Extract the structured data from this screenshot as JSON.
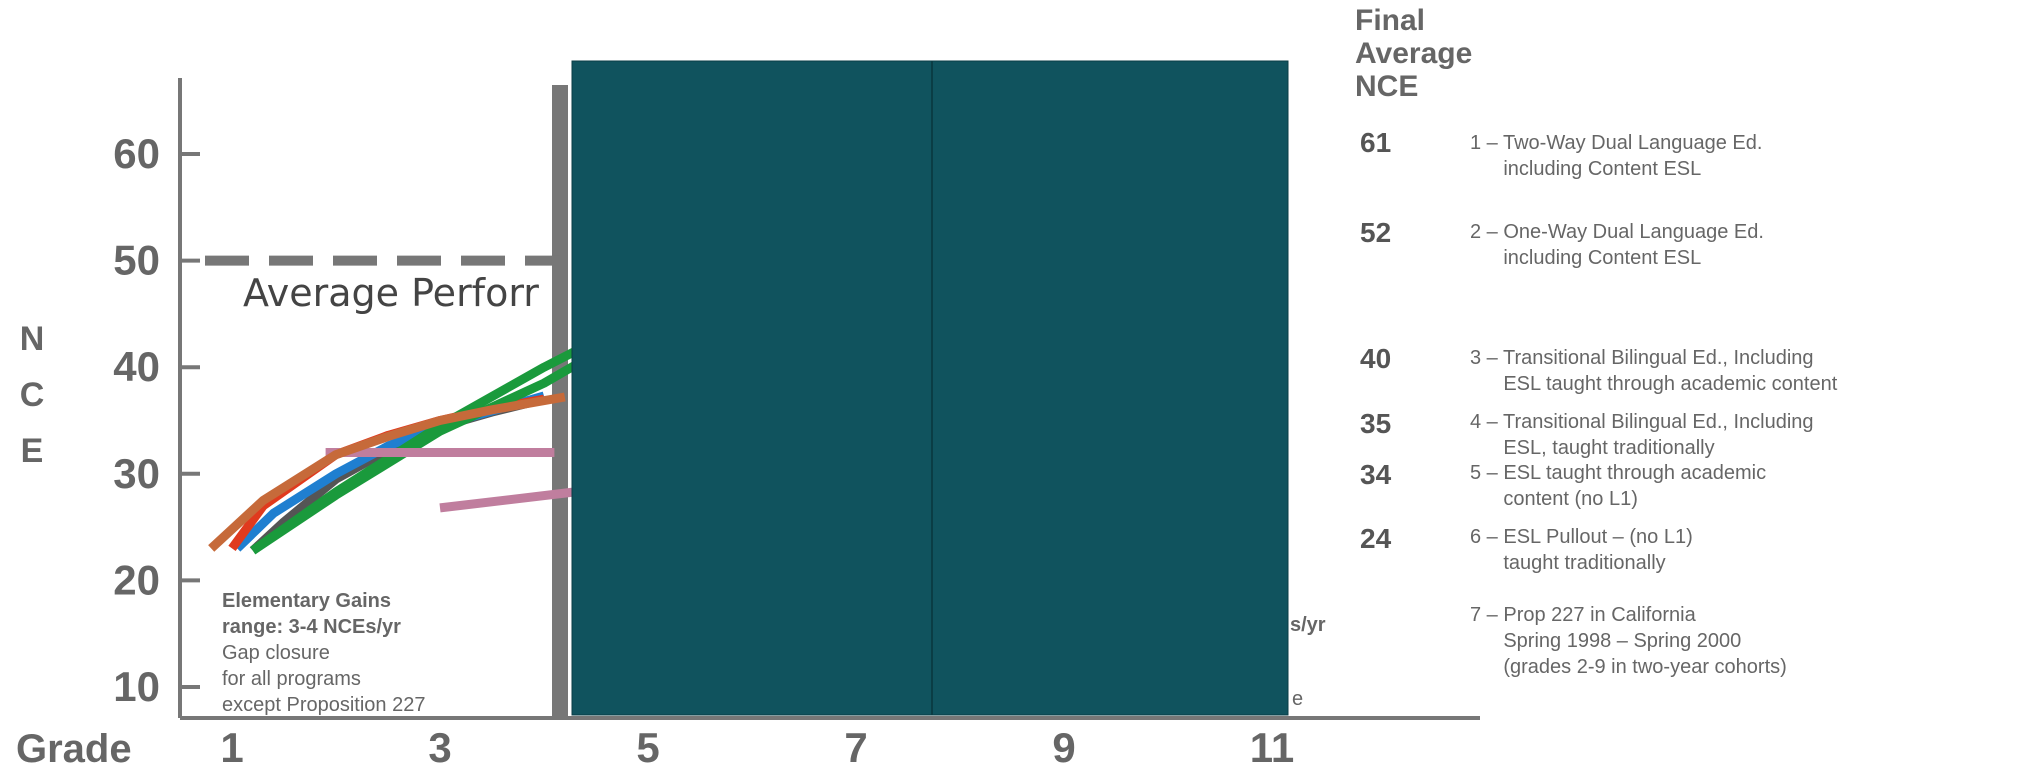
{
  "chart_data": {
    "type": "line",
    "ylabel": "N C E",
    "xlabel": "Grade",
    "x_ticks": [
      "1",
      "3",
      "5",
      "7",
      "9",
      "11"
    ],
    "y_ticks": [
      "10",
      "20",
      "30",
      "40",
      "50",
      "60"
    ],
    "ylim": [
      5,
      66
    ],
    "xlim": [
      0.5,
      11.4
    ],
    "reference_line": {
      "y": 50,
      "label": "Average Perforr",
      "style": "dashed"
    },
    "series": [
      {
        "color": "#555555",
        "x": [
          1.2,
          1.5,
          2,
          2.5,
          3,
          3.5,
          4
        ],
        "y": [
          22.8,
          25.5,
          29.5,
          32.2,
          34.4,
          35.8,
          37.0
        ]
      },
      {
        "color": "#1f7fd0",
        "x": [
          1.05,
          1.4,
          2,
          2.5,
          3,
          3.5,
          4
        ],
        "y": [
          23.0,
          26.3,
          30.0,
          32.6,
          34.5,
          35.9,
          37.3
        ]
      },
      {
        "color": "#e03a1e",
        "x": [
          1.0,
          1.3,
          2,
          2.5,
          3,
          3.5,
          4
        ],
        "y": [
          23.0,
          27.0,
          31.8,
          33.6,
          35.0,
          36.1,
          37.0
        ]
      },
      {
        "color": "#1a9a3c",
        "x": [
          1.2,
          2,
          3,
          4,
          4.3
        ],
        "y": [
          22.8,
          28.3,
          34.5,
          40.0,
          41.5
        ]
      },
      {
        "color": "#1a9a3c",
        "x": [
          1.2,
          2,
          3,
          4,
          4.3
        ],
        "y": [
          22.8,
          28.0,
          34.0,
          38.5,
          40.2
        ]
      },
      {
        "color": "#c07e9e",
        "x": [
          1.9,
          4.1
        ],
        "y": [
          32.0,
          32.0
        ]
      },
      {
        "color": "#c07e9e",
        "x": [
          3.0,
          4.3
        ],
        "y": [
          26.8,
          28.3
        ]
      },
      {
        "color": "#c66a3a",
        "x": [
          0.8,
          1.3,
          2,
          2.5,
          3,
          3.5,
          4.2
        ],
        "y": [
          23.0,
          27.5,
          31.8,
          33.5,
          35.0,
          36.0,
          37.2
        ]
      }
    ],
    "annotations": {
      "elementary": [
        "Elementary Gains",
        "range: 3-4 NCEs/yr",
        "Gap closure",
        "for all programs",
        "except Proposition 227"
      ],
      "partial_right": "s/yr",
      "partial_bottom": "e"
    },
    "legend": {
      "title": [
        "Final",
        "Average",
        "NCE"
      ],
      "entries": [
        {
          "value": "61",
          "label": "1 – Two-Way Dual Language Ed.\n      including Content ESL"
        },
        {
          "value": "52",
          "label": "2 – One-Way Dual Language Ed.\n      including Content ESL"
        },
        {
          "value": "40",
          "label": "3 – Transitional Bilingual Ed., Including\n      ESL taught through academic content"
        },
        {
          "value": "35",
          "label": "4 – Transitional Bilingual Ed., Including\n      ESL, taught traditionally"
        },
        {
          "value": "34",
          "label": "5 – ESL taught through academic\n      content (no L1)"
        },
        {
          "value": "24",
          "label": "6 – ESL Pullout – (no L1)\n      taught traditionally"
        },
        {
          "value": "",
          "label": "7 – Prop 227 in California\n      Spring 1998 – Spring 2000\n      (grades 2-9 in two-year cohorts)"
        }
      ]
    }
  },
  "colors": {
    "axis": "#777777",
    "overlay": "#10535e",
    "text": "#555555"
  }
}
